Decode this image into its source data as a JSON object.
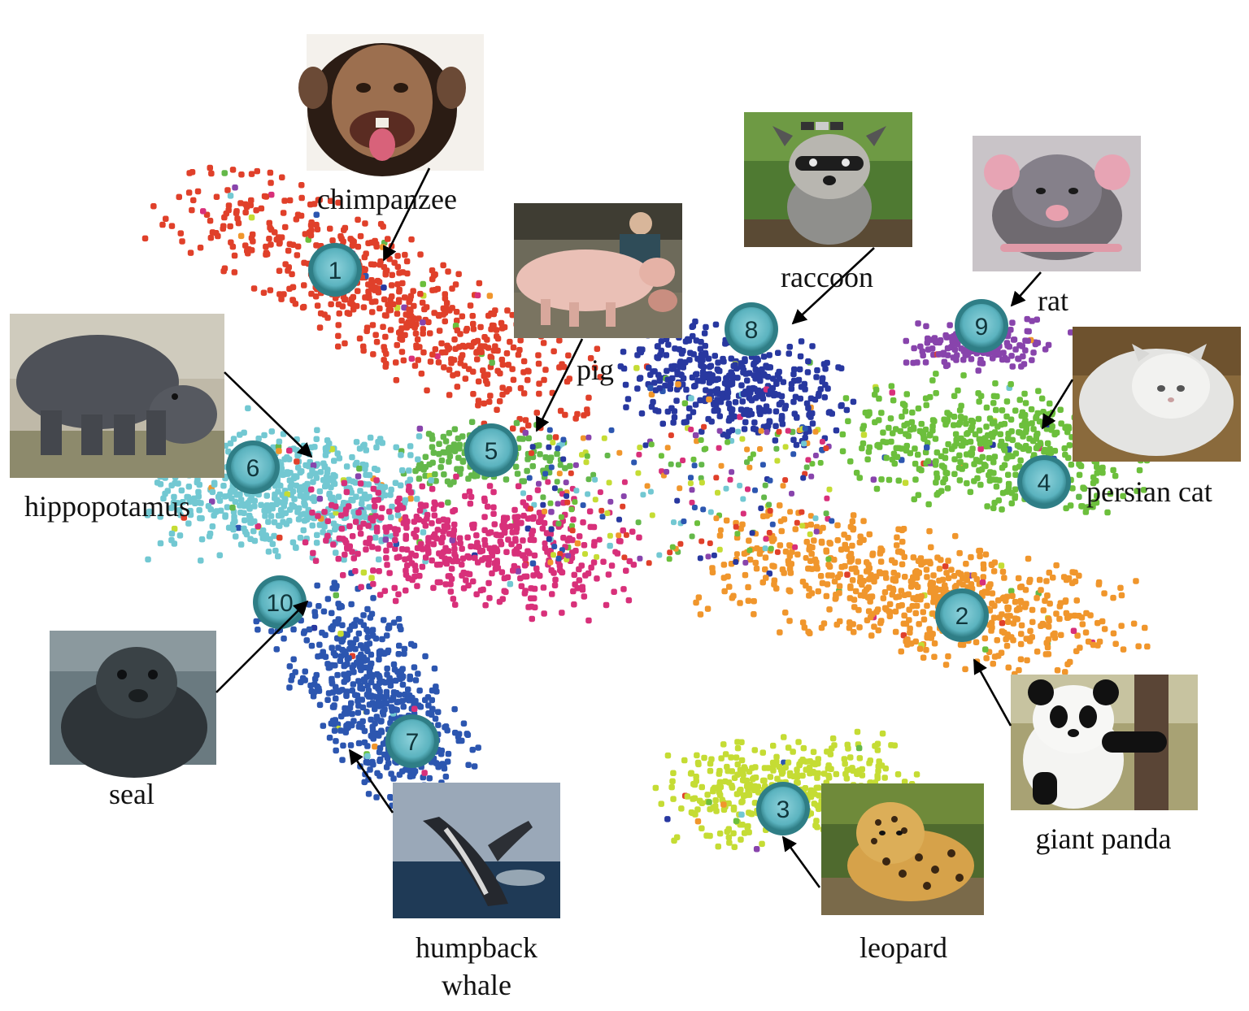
{
  "chart_data": {
    "type": "scatter",
    "title": "",
    "xlabel": "",
    "ylabel": "",
    "grid": false,
    "legend": "none",
    "clusters": [
      {
        "id": 1,
        "number": "1",
        "label": "chimpanzee",
        "color": "#e0402a",
        "center": [
          0.3,
          0.29
        ],
        "extent": [
          0.19,
          0.06
        ],
        "angle": 28,
        "count": 600
      },
      {
        "id": 2,
        "number": "2",
        "label": "giant panda",
        "color": "#f0962c",
        "center": [
          0.74,
          0.59
        ],
        "extent": [
          0.17,
          0.06
        ],
        "angle": 12,
        "count": 650
      },
      {
        "id": 3,
        "number": "3",
        "label": "leopard",
        "color": "#c5dc34",
        "center": [
          0.63,
          0.78
        ],
        "extent": [
          0.1,
          0.05
        ],
        "angle": -5,
        "count": 400
      },
      {
        "id": 4,
        "number": "4",
        "label": "persian cat",
        "color": "#6cbf3c",
        "center": [
          0.8,
          0.44
        ],
        "extent": [
          0.12,
          0.06
        ],
        "angle": 5,
        "count": 500
      },
      {
        "id": 5,
        "number": "5",
        "label": "pig",
        "color": "#64b84a",
        "center": [
          0.39,
          0.45
        ],
        "extent": [
          0.07,
          0.03
        ],
        "angle": 0,
        "count": 160
      },
      {
        "id": 6,
        "number": "6",
        "label": "hippopotamus",
        "color": "#72c8d2",
        "center": [
          0.23,
          0.49
        ],
        "extent": [
          0.11,
          0.06
        ],
        "angle": 0,
        "count": 560
      },
      {
        "id": 7,
        "number": "7",
        "label": "humpback whale",
        "color": "#2c56b0",
        "center": [
          0.3,
          0.69
        ],
        "extent": [
          0.1,
          0.06
        ],
        "angle": 55,
        "count": 560
      },
      {
        "id": 8,
        "number": "8",
        "label": "raccoon",
        "color": "#2838a0",
        "center": [
          0.59,
          0.38
        ],
        "extent": [
          0.09,
          0.05
        ],
        "angle": 10,
        "count": 420
      },
      {
        "id": 9,
        "number": "9",
        "label": "rat",
        "color": "#8844ac",
        "center": [
          0.78,
          0.34
        ],
        "extent": [
          0.06,
          0.025
        ],
        "angle": 0,
        "count": 150
      },
      {
        "id": 10,
        "number": "10",
        "label": "seal",
        "color": "#d8307a",
        "center": [
          0.38,
          0.54
        ],
        "extent": [
          0.13,
          0.06
        ],
        "angle": 8,
        "count": 480
      }
    ],
    "annotations": [
      {
        "label": "chimpanzee",
        "photo": "chimpanzee"
      },
      {
        "label": "raccoon",
        "photo": "raccoon"
      },
      {
        "label": "rat",
        "photo": "rat"
      },
      {
        "label": "pig",
        "photo": "pig"
      },
      {
        "label": "hippopotamus",
        "photo": "hippopotamus"
      },
      {
        "label": "persian cat",
        "photo": "persian cat"
      },
      {
        "label": "seal",
        "photo": "seal"
      },
      {
        "label": "giant panda",
        "photo": "giant panda"
      },
      {
        "label": "humpback\nwhale",
        "photo": "humpback whale"
      },
      {
        "label": "leopard",
        "photo": "leopard"
      }
    ]
  },
  "labels": {
    "chimpanzee": "chimpanzee",
    "raccoon": "raccoon",
    "rat": "rat",
    "pig": "pig",
    "hippopotamus": "hippopotamus",
    "persian_cat": "persian cat",
    "seal": "seal",
    "giant_panda": "giant panda",
    "humpback_1": "humpback",
    "humpback_2": "whale",
    "leopard": "leopard"
  }
}
